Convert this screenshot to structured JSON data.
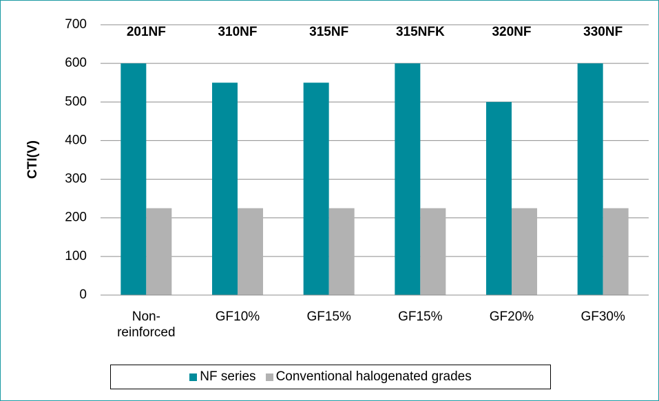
{
  "chart_data": {
    "type": "bar",
    "y_label": "CTI(V)",
    "categories": [
      "Non-reinforced",
      "GF10%",
      "GF15%",
      "GF15%",
      "GF20%",
      "GF30%"
    ],
    "annotations": [
      "201NF",
      "310NF",
      "315NF",
      "315NFK",
      "320NF",
      "330NF"
    ],
    "series": [
      {
        "name": "NF series",
        "color": "#008b9b",
        "values": [
          600,
          550,
          550,
          600,
          500,
          600
        ]
      },
      {
        "name": "Conventional halogenated grades",
        "color": "#b2b2b2",
        "values": [
          225,
          225,
          225,
          225,
          225,
          225
        ]
      }
    ],
    "ylim": [
      0,
      700
    ],
    "yticks": [
      0,
      100,
      200,
      300,
      400,
      500,
      600,
      700
    ],
    "grid": true,
    "legend": "bottom"
  }
}
